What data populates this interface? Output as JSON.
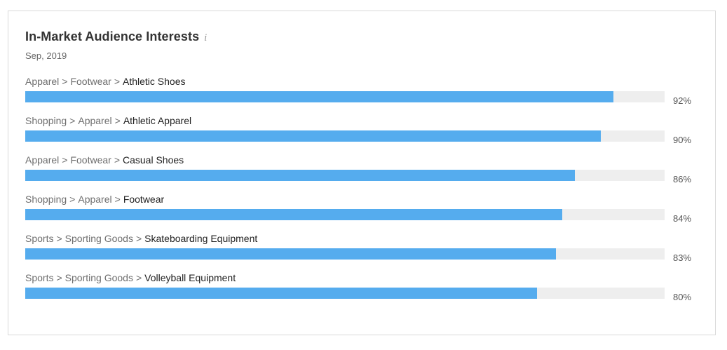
{
  "widget": {
    "title": "In-Market Audience Interests",
    "info_icon": "info-icon",
    "subtitle": "Sep, 2019"
  },
  "colors": {
    "bar_fill": "#55acee",
    "bar_track": "#eeeeee"
  },
  "rows": [
    {
      "path": [
        "Apparel",
        "Footwear"
      ],
      "leaf": "Athletic Shoes",
      "percent_label": "92%",
      "value": 0.92
    },
    {
      "path": [
        "Shopping",
        "Apparel"
      ],
      "leaf": "Athletic Apparel",
      "percent_label": "90%",
      "value": 0.9
    },
    {
      "path": [
        "Apparel",
        "Footwear"
      ],
      "leaf": "Casual Shoes",
      "percent_label": "86%",
      "value": 0.86
    },
    {
      "path": [
        "Shopping",
        "Apparel"
      ],
      "leaf": "Footwear",
      "percent_label": "84%",
      "value": 0.84
    },
    {
      "path": [
        "Sports",
        "Sporting Goods"
      ],
      "leaf": "Skateboarding Equipment",
      "percent_label": "83%",
      "value": 0.83
    },
    {
      "path": [
        "Sports",
        "Sporting Goods"
      ],
      "leaf": "Volleyball Equipment",
      "percent_label": "80%",
      "value": 0.8
    }
  ]
}
